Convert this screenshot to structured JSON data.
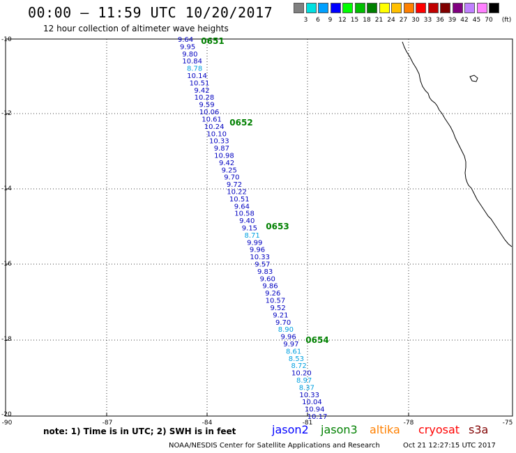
{
  "header": {
    "title": "00:00 – 11:59 UTC 10/20/2017",
    "subtitle": "12 hour collection of altimeter wave heights"
  },
  "scale": {
    "unit": "(ft)",
    "labels": [
      "3",
      "6",
      "9",
      "12",
      "15",
      "18",
      "21",
      "24",
      "27",
      "30",
      "33",
      "36",
      "39",
      "42",
      "45",
      "70"
    ],
    "colors": [
      "#808080",
      "#00e0e0",
      "#00a0ff",
      "#0000ff",
      "#00ff00",
      "#00c000",
      "#008000",
      "#ffff00",
      "#ffc000",
      "#ff8000",
      "#ff0000",
      "#c00000",
      "#800000",
      "#800080",
      "#c080ff",
      "#ff80ff",
      "#000000"
    ]
  },
  "axes": {
    "y_labels": [
      "-10",
      "-12",
      "-14",
      "-16",
      "-18",
      "-20"
    ],
    "x_labels": [
      "-90",
      "-87",
      "-84",
      "-81",
      "-78",
      "-75"
    ]
  },
  "time_marks": [
    "0651",
    "0652",
    "0653",
    "0654"
  ],
  "track": [
    {
      "v": "9.64",
      "c": "#0000c0"
    },
    {
      "v": "9.95",
      "c": "#0000c0"
    },
    {
      "v": "9.80",
      "c": "#0000c0"
    },
    {
      "v": "10.84",
      "c": "#0000c0"
    },
    {
      "v": "8.78",
      "c": "#00a0e0"
    },
    {
      "v": "10.14",
      "c": "#0000c0"
    },
    {
      "v": "10.51",
      "c": "#0000c0"
    },
    {
      "v": "9.42",
      "c": "#0000c0"
    },
    {
      "v": "10.28",
      "c": "#0000c0"
    },
    {
      "v": "9.59",
      "c": "#0000c0"
    },
    {
      "v": "10.06",
      "c": "#0000c0"
    },
    {
      "v": "10.61",
      "c": "#0000c0"
    },
    {
      "v": "10.24",
      "c": "#0000c0"
    },
    {
      "v": "10.10",
      "c": "#0000c0"
    },
    {
      "v": "10.33",
      "c": "#0000c0"
    },
    {
      "v": "9.87",
      "c": "#0000c0"
    },
    {
      "v": "10.98",
      "c": "#0000c0"
    },
    {
      "v": "9.42",
      "c": "#0000c0"
    },
    {
      "v": "9.25",
      "c": "#0000c0"
    },
    {
      "v": "9.70",
      "c": "#0000c0"
    },
    {
      "v": "9.72",
      "c": "#0000c0"
    },
    {
      "v": "10.22",
      "c": "#0000c0"
    },
    {
      "v": "10.51",
      "c": "#0000c0"
    },
    {
      "v": "9.64",
      "c": "#0000c0"
    },
    {
      "v": "10.58",
      "c": "#0000c0"
    },
    {
      "v": "9.40",
      "c": "#0000c0"
    },
    {
      "v": "9.15",
      "c": "#0000c0"
    },
    {
      "v": "8.71",
      "c": "#00a0e0"
    },
    {
      "v": "9.99",
      "c": "#0000c0"
    },
    {
      "v": "9.96",
      "c": "#0000c0"
    },
    {
      "v": "10.33",
      "c": "#0000c0"
    },
    {
      "v": "9.57",
      "c": "#0000c0"
    },
    {
      "v": "9.83",
      "c": "#0000c0"
    },
    {
      "v": "9.60",
      "c": "#0000c0"
    },
    {
      "v": "9.86",
      "c": "#0000c0"
    },
    {
      "v": "9.26",
      "c": "#0000c0"
    },
    {
      "v": "10.57",
      "c": "#0000c0"
    },
    {
      "v": "9.52",
      "c": "#0000c0"
    },
    {
      "v": "9.21",
      "c": "#0000c0"
    },
    {
      "v": "9.70",
      "c": "#0000c0"
    },
    {
      "v": "8.90",
      "c": "#00a0e0"
    },
    {
      "v": "9.96",
      "c": "#0000c0"
    },
    {
      "v": "9.97",
      "c": "#0000c0"
    },
    {
      "v": "8.61",
      "c": "#00a0e0"
    },
    {
      "v": "8.53",
      "c": "#00a0e0"
    },
    {
      "v": "8.72",
      "c": "#00a0e0"
    },
    {
      "v": "10.20",
      "c": "#0000c0"
    },
    {
      "v": "8.97",
      "c": "#00a0e0"
    },
    {
      "v": "8.37",
      "c": "#00a0e0"
    },
    {
      "v": "10.33",
      "c": "#0000c0"
    },
    {
      "v": "10.04",
      "c": "#0000c0"
    },
    {
      "v": "10.94",
      "c": "#0000c0"
    },
    {
      "v": "10.17",
      "c": "#0000c0"
    }
  ],
  "footer": {
    "note": "note: 1) Time is in UTC; 2) SWH is in feet",
    "missions": [
      {
        "name": "jason2",
        "color": "#0000ff"
      },
      {
        "name": "jason3",
        "color": "#008000"
      },
      {
        "name": "altika",
        "color": "#ff8000"
      },
      {
        "name": "cryosat",
        "color": "#ff0000"
      },
      {
        "name": "s3a",
        "color": "#800000"
      }
    ],
    "credit": "NOAA/NESDIS Center for Satellite Applications and Research",
    "timestamp": "Oct 21 12:27:15 UTC 2017"
  }
}
